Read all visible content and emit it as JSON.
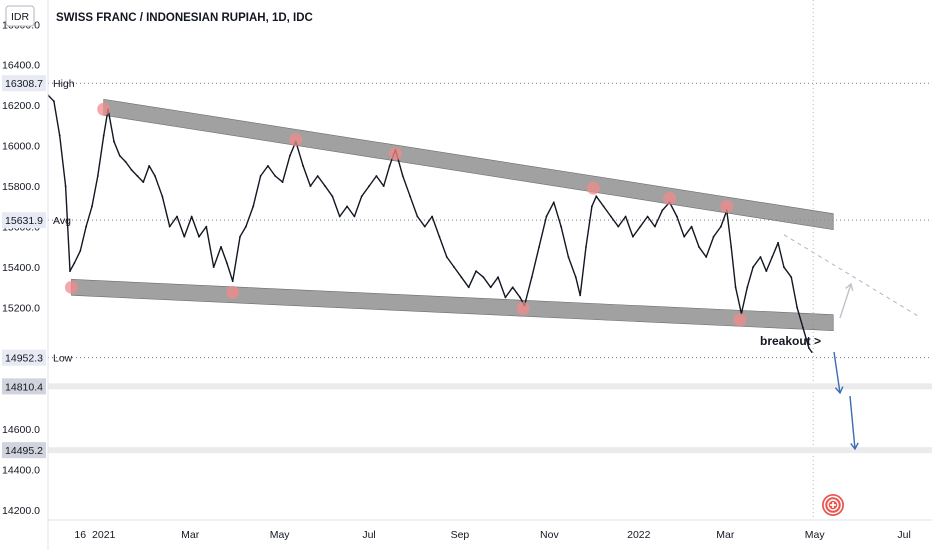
{
  "chart_data": {
    "type": "line",
    "title": "SWISS FRANC / INDONESIAN RUPIAH, 1D, IDC",
    "currency_label": "IDR",
    "ylim": [
      14150,
      16720
    ],
    "y_ticks": [
      "16600.0",
      "16400.0",
      "16200.0",
      "16000.0",
      "15800.0",
      "15600.0",
      "15400.0",
      "15200.0",
      "14600.0",
      "14400.0",
      "14200.0"
    ],
    "y_tick_values": [
      16600,
      16400,
      16200,
      16000,
      15800,
      15600,
      15400,
      15200,
      14600,
      14400,
      14200
    ],
    "x_range": [
      "2020-11-24",
      "2022-07-20"
    ],
    "x_ticks": [
      {
        "label": "16",
        "date": "2020-12-16"
      },
      {
        "label": "2021",
        "date": "2021-01-01"
      },
      {
        "label": "Mar",
        "date": "2021-03-01"
      },
      {
        "label": "May",
        "date": "2021-05-01"
      },
      {
        "label": "Jul",
        "date": "2021-07-01"
      },
      {
        "label": "Sep",
        "date": "2021-09-01"
      },
      {
        "label": "Nov",
        "date": "2021-11-01"
      },
      {
        "label": "2022",
        "date": "2022-01-01"
      },
      {
        "label": "Mar",
        "date": "2022-03-01"
      },
      {
        "label": "May",
        "date": "2022-05-01"
      },
      {
        "label": "Jul",
        "date": "2022-07-01"
      }
    ],
    "price_levels": [
      {
        "label": "High",
        "value": "16308.7",
        "num": 16308.7
      },
      {
        "label": "Avg",
        "value": "15631.9",
        "num": 15631.9
      },
      {
        "label": "Low",
        "value": "14952.3",
        "num": 14952.3
      }
    ],
    "target_levels": [
      {
        "value": "14810.4",
        "num": 14810.4
      },
      {
        "value": "14495.2",
        "num": 14495.2
      }
    ],
    "annotation": "breakout >",
    "channel_upper": [
      {
        "date": "2021-01-01",
        "value": 16190
      },
      {
        "date": "2022-04-30",
        "value": 15640
      }
    ],
    "channel_lower": [
      {
        "date": "2020-12-10",
        "value": 15300
      },
      {
        "date": "2022-04-30",
        "value": 15130
      }
    ],
    "touch_points": [
      {
        "date": "2021-01-01",
        "value": 16180
      },
      {
        "date": "2021-05-12",
        "value": 16030
      },
      {
        "date": "2021-07-19",
        "value": 15960
      },
      {
        "date": "2021-12-01",
        "value": 15790
      },
      {
        "date": "2022-01-22",
        "value": 15740
      },
      {
        "date": "2022-03-02",
        "value": 15700
      },
      {
        "date": "2020-12-10",
        "value": 15300
      },
      {
        "date": "2021-03-30",
        "value": 15275
      },
      {
        "date": "2021-10-14",
        "value": 15195
      },
      {
        "date": "2022-03-11",
        "value": 15140
      }
    ],
    "series": [
      {
        "points": [
          [
            "2020-11-24",
            16250
          ],
          [
            "2020-11-28",
            16220
          ],
          [
            "2020-12-02",
            16050
          ],
          [
            "2020-12-06",
            15800
          ],
          [
            "2020-12-09",
            15380
          ],
          [
            "2020-12-12",
            15420
          ],
          [
            "2020-12-16",
            15480
          ],
          [
            "2020-12-20",
            15600
          ],
          [
            "2020-12-24",
            15700
          ],
          [
            "2020-12-28",
            15850
          ],
          [
            "2021-01-01",
            16050
          ],
          [
            "2021-01-04",
            16180
          ],
          [
            "2021-01-08",
            16020
          ],
          [
            "2021-01-12",
            15950
          ],
          [
            "2021-01-16",
            15920
          ],
          [
            "2021-01-20",
            15880
          ],
          [
            "2021-01-24",
            15850
          ],
          [
            "2021-01-28",
            15820
          ],
          [
            "2021-02-01",
            15900
          ],
          [
            "2021-02-05",
            15850
          ],
          [
            "2021-02-10",
            15750
          ],
          [
            "2021-02-15",
            15600
          ],
          [
            "2021-02-20",
            15650
          ],
          [
            "2021-02-25",
            15550
          ],
          [
            "2021-03-02",
            15650
          ],
          [
            "2021-03-07",
            15550
          ],
          [
            "2021-03-12",
            15600
          ],
          [
            "2021-03-17",
            15400
          ],
          [
            "2021-03-22",
            15500
          ],
          [
            "2021-03-26",
            15420
          ],
          [
            "2021-03-30",
            15330
          ],
          [
            "2021-04-04",
            15550
          ],
          [
            "2021-04-08",
            15600
          ],
          [
            "2021-04-13",
            15700
          ],
          [
            "2021-04-18",
            15850
          ],
          [
            "2021-04-23",
            15900
          ],
          [
            "2021-04-28",
            15850
          ],
          [
            "2021-05-03",
            15820
          ],
          [
            "2021-05-08",
            15950
          ],
          [
            "2021-05-12",
            16020
          ],
          [
            "2021-05-17",
            15900
          ],
          [
            "2021-05-22",
            15800
          ],
          [
            "2021-05-27",
            15850
          ],
          [
            "2021-06-01",
            15800
          ],
          [
            "2021-06-06",
            15750
          ],
          [
            "2021-06-11",
            15650
          ],
          [
            "2021-06-16",
            15700
          ],
          [
            "2021-06-21",
            15650
          ],
          [
            "2021-06-26",
            15750
          ],
          [
            "2021-07-01",
            15800
          ],
          [
            "2021-07-06",
            15850
          ],
          [
            "2021-07-11",
            15800
          ],
          [
            "2021-07-15",
            15900
          ],
          [
            "2021-07-19",
            15980
          ],
          [
            "2021-07-24",
            15850
          ],
          [
            "2021-07-29",
            15750
          ],
          [
            "2021-08-03",
            15650
          ],
          [
            "2021-08-08",
            15600
          ],
          [
            "2021-08-13",
            15650
          ],
          [
            "2021-08-18",
            15550
          ],
          [
            "2021-08-23",
            15450
          ],
          [
            "2021-08-28",
            15400
          ],
          [
            "2021-09-02",
            15350
          ],
          [
            "2021-09-07",
            15300
          ],
          [
            "2021-09-12",
            15380
          ],
          [
            "2021-09-17",
            15350
          ],
          [
            "2021-09-22",
            15300
          ],
          [
            "2021-09-27",
            15350
          ],
          [
            "2021-10-02",
            15250
          ],
          [
            "2021-10-07",
            15300
          ],
          [
            "2021-10-12",
            15250
          ],
          [
            "2021-10-15",
            15210
          ],
          [
            "2021-10-20",
            15350
          ],
          [
            "2021-10-25",
            15500
          ],
          [
            "2021-10-30",
            15650
          ],
          [
            "2021-11-04",
            15720
          ],
          [
            "2021-11-09",
            15600
          ],
          [
            "2021-11-14",
            15450
          ],
          [
            "2021-11-19",
            15350
          ],
          [
            "2021-11-22",
            15260
          ],
          [
            "2021-11-26",
            15500
          ],
          [
            "2021-11-30",
            15700
          ],
          [
            "2021-12-03",
            15750
          ],
          [
            "2021-12-08",
            15700
          ],
          [
            "2021-12-13",
            15650
          ],
          [
            "2021-12-18",
            15600
          ],
          [
            "2021-12-23",
            15650
          ],
          [
            "2021-12-28",
            15550
          ],
          [
            "2022-01-02",
            15600
          ],
          [
            "2022-01-07",
            15650
          ],
          [
            "2022-01-12",
            15600
          ],
          [
            "2022-01-17",
            15680
          ],
          [
            "2022-01-22",
            15720
          ],
          [
            "2022-01-27",
            15650
          ],
          [
            "2022-02-01",
            15550
          ],
          [
            "2022-02-06",
            15600
          ],
          [
            "2022-02-11",
            15500
          ],
          [
            "2022-02-16",
            15450
          ],
          [
            "2022-02-21",
            15550
          ],
          [
            "2022-02-26",
            15600
          ],
          [
            "2022-03-02",
            15680
          ],
          [
            "2022-03-05",
            15500
          ],
          [
            "2022-03-08",
            15300
          ],
          [
            "2022-03-12",
            15170
          ],
          [
            "2022-03-16",
            15300
          ],
          [
            "2022-03-20",
            15400
          ],
          [
            "2022-03-25",
            15450
          ],
          [
            "2022-03-29",
            15380
          ],
          [
            "2022-04-02",
            15450
          ],
          [
            "2022-04-06",
            15520
          ],
          [
            "2022-04-10",
            15400
          ],
          [
            "2022-04-15",
            15350
          ],
          [
            "2022-04-19",
            15200
          ],
          [
            "2022-04-23",
            15100
          ],
          [
            "2022-04-27",
            15000
          ],
          [
            "2022-04-29",
            14980
          ]
        ]
      }
    ]
  }
}
